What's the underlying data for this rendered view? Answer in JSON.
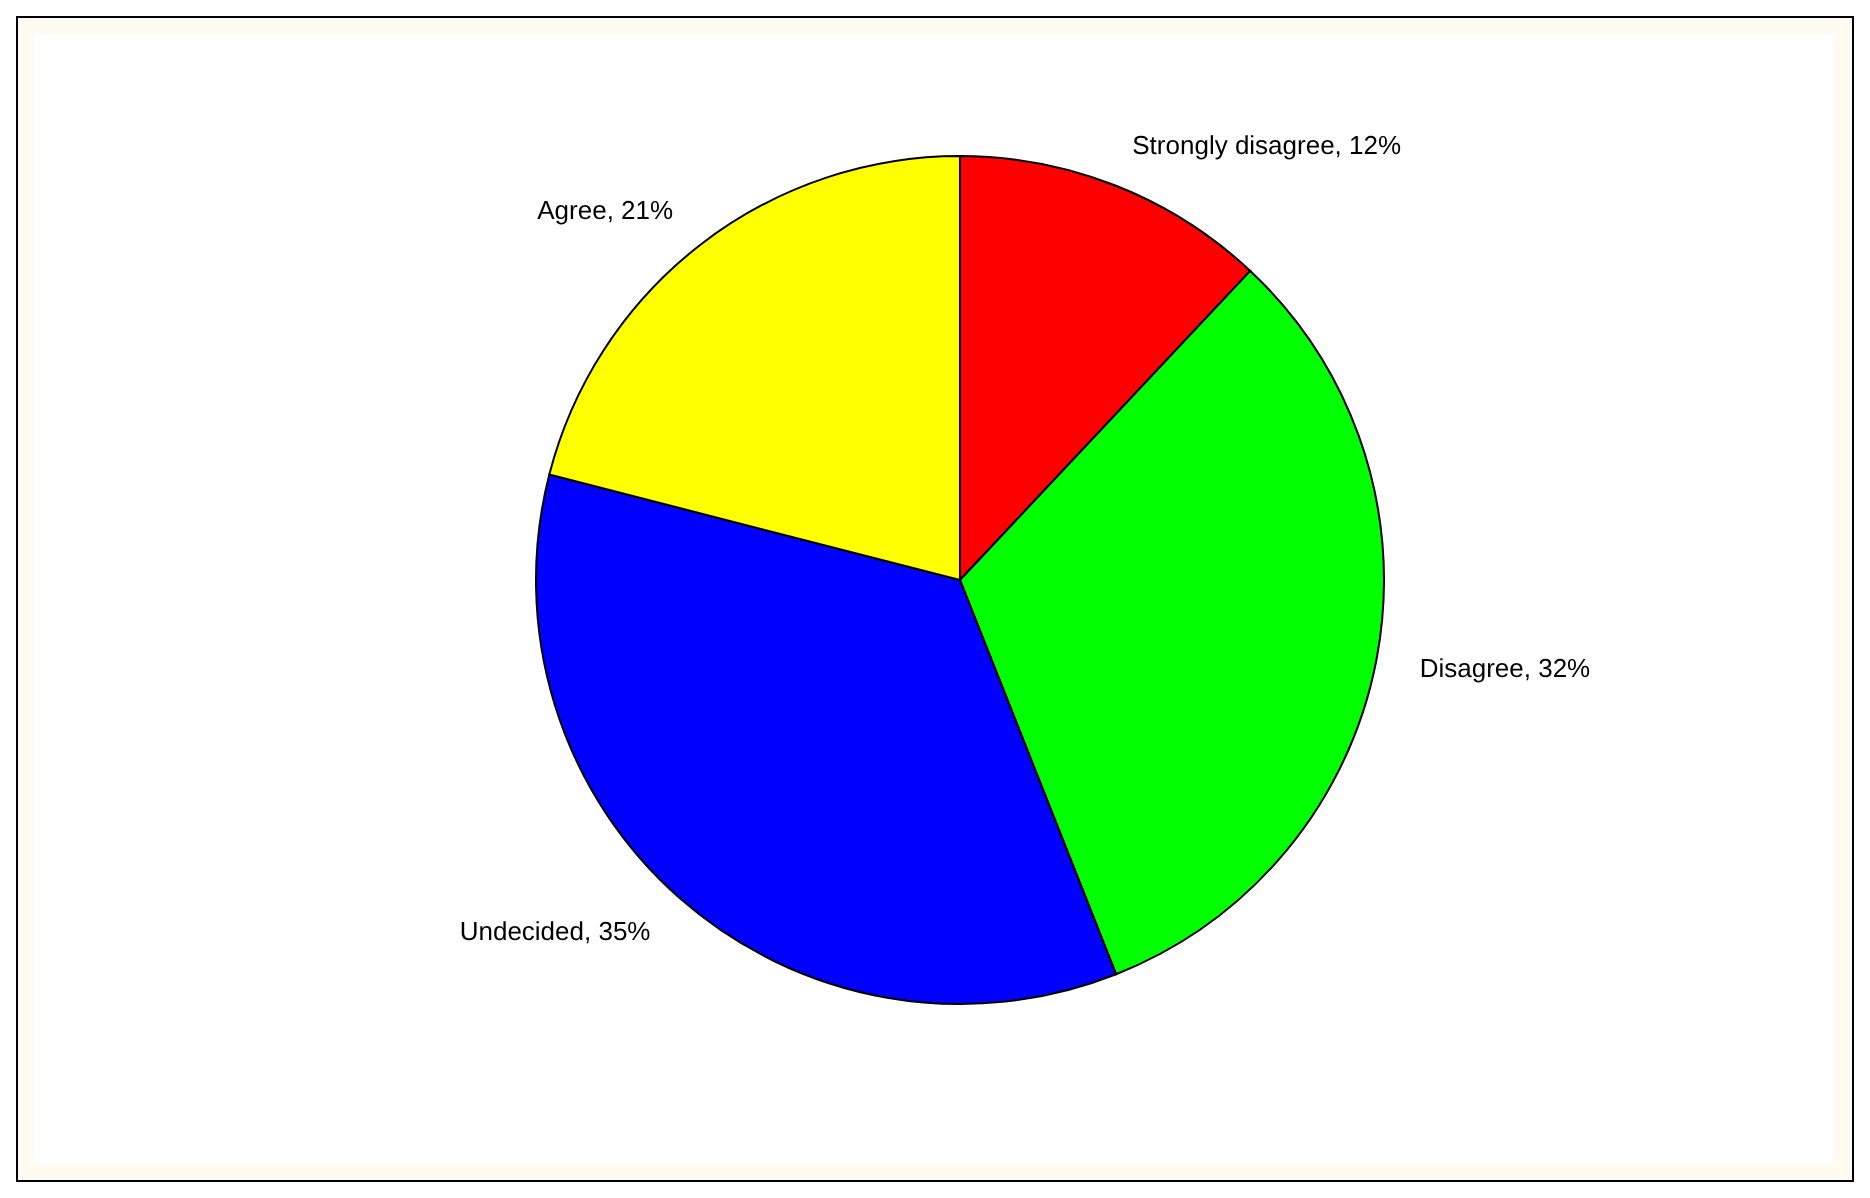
{
  "chart_data": {
    "type": "pie",
    "categories": [
      "Strongly disagree",
      "Disagree",
      "Undecided",
      "Agree"
    ],
    "values": [
      12,
      32,
      35,
      21
    ],
    "colors": [
      "#ff0000",
      "#00ff00",
      "#0000ff",
      "#ffff00"
    ],
    "value_labels": [
      "12%",
      "32%",
      "35%",
      "21%"
    ]
  }
}
